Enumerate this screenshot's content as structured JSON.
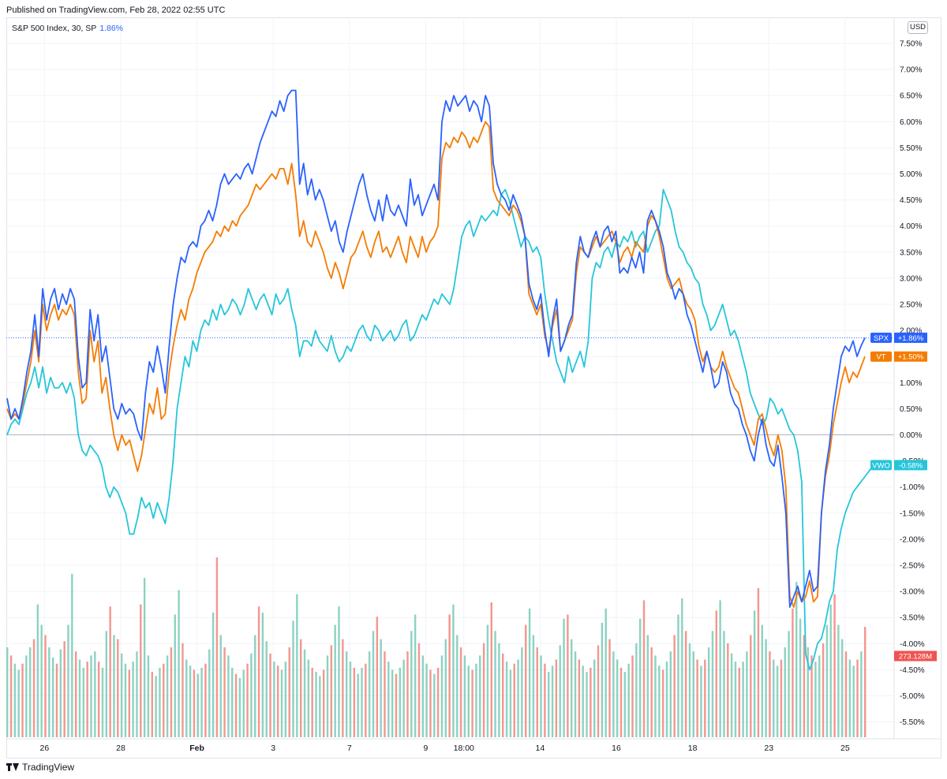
{
  "header": {
    "published": "Published on TradingView.com, Feb 28, 2022 02:55 UTC"
  },
  "legend": {
    "symbol": "S&P 500 Index, 30, SP",
    "change": "1.86%"
  },
  "currency": "USD",
  "footer": {
    "brand": "TradingView"
  },
  "colors": {
    "spx": "#2962ff",
    "vt": "#f57c00",
    "vwo": "#26c6da",
    "vol_up": "#7fcdbb",
    "vol_down": "#f28b82"
  },
  "chart_data": {
    "type": "line",
    "y_axis_unit": "%",
    "ylim": [
      -5.75,
      7.75
    ],
    "y_ticks": [
      "7.50%",
      "7.00%",
      "6.50%",
      "6.00%",
      "5.50%",
      "5.00%",
      "4.50%",
      "4.00%",
      "3.50%",
      "3.00%",
      "2.50%",
      "2.00%",
      "1.50%",
      "1.00%",
      "0.50%",
      "0.00%",
      "-0.50%",
      "-1.00%",
      "-1.50%",
      "-2.00%",
      "-2.50%",
      "-3.00%",
      "-3.50%",
      "-4.00%",
      "-4.50%",
      "-5.00%",
      "-5.50%"
    ],
    "x_ticks": [
      "26",
      "28",
      "Feb",
      "3",
      "7",
      "9",
      "18:00",
      "14",
      "16",
      "18",
      "23",
      "25"
    ],
    "x_tick_bold": [
      "Feb"
    ],
    "bars_per_session": 14,
    "sessions": 23,
    "series": [
      {
        "name": "SPX",
        "badge": "+1.86%",
        "last": 1.86,
        "values": [
          0.7,
          0.3,
          0.5,
          0.3,
          0.7,
          1.2,
          1.6,
          2.3,
          1.5,
          2.8,
          2.2,
          2.6,
          2.8,
          2.4,
          2.7,
          2.5,
          2.8,
          2.6,
          1.5,
          0.9,
          1.0,
          2.4,
          1.8,
          2.3,
          1.4,
          1.7,
          1.1,
          0.5,
          0.3,
          0.6,
          0.4,
          0.5,
          0.4,
          0.1,
          -0.1,
          0.8,
          1.4,
          1.2,
          1.7,
          1.3,
          0.8,
          1.7,
          2.5,
          3.0,
          3.4,
          3.3,
          3.6,
          3.7,
          3.6,
          4.0,
          4.1,
          4.3,
          4.1,
          4.4,
          4.8,
          5.0,
          4.8,
          4.9,
          5.0,
          4.9,
          5.1,
          5.2,
          5.0,
          5.3,
          5.6,
          5.8,
          6.0,
          6.2,
          6.1,
          6.4,
          6.2,
          6.5,
          6.6,
          6.6,
          4.8,
          5.2,
          4.6,
          4.9,
          4.5,
          4.7,
          4.5,
          4.2,
          3.9,
          4.1,
          3.7,
          3.5,
          3.9,
          4.2,
          4.5,
          4.8,
          5.0,
          4.6,
          4.3,
          4.1,
          4.5,
          4.1,
          4.6,
          4.3,
          4.2,
          4.4,
          4.2,
          4.0,
          4.9,
          4.4,
          4.6,
          4.2,
          4.4,
          4.6,
          4.8,
          4.5,
          6.0,
          6.4,
          6.2,
          6.5,
          6.3,
          6.4,
          6.5,
          6.2,
          6.4,
          6.3,
          6.0,
          6.5,
          6.3,
          5.2,
          4.8,
          4.6,
          4.5,
          4.3,
          4.6,
          4.4,
          4.2,
          3.8,
          2.9,
          2.6,
          2.4,
          2.7,
          2.0,
          1.5,
          2.2,
          2.6,
          1.6,
          1.8,
          2.1,
          2.3,
          3.3,
          3.8,
          3.5,
          3.4,
          3.7,
          3.9,
          3.6,
          3.9,
          4.0,
          3.7,
          3.9,
          3.1,
          3.2,
          3.1,
          3.4,
          3.2,
          3.5,
          3.1,
          4.1,
          4.3,
          4.1,
          3.9,
          3.6,
          3.1,
          2.9,
          2.6,
          2.8,
          2.7,
          2.3,
          2.1,
          1.8,
          1.5,
          1.2,
          1.6,
          1.3,
          0.9,
          1.0,
          1.4,
          1.2,
          0.8,
          0.6,
          0.5,
          0.2,
          0.0,
          -0.3,
          -0.5,
          0.0,
          0.3,
          -0.2,
          -0.5,
          -0.6,
          -0.2,
          -0.8,
          -1.5,
          -3.3,
          -3.1,
          -2.9,
          -3.2,
          -2.9,
          -2.6,
          -3.0,
          -2.9,
          -1.5,
          -0.7,
          -0.2,
          0.5,
          1.0,
          1.5,
          1.7,
          1.6,
          1.8,
          1.5,
          1.7,
          1.86
        ]
      },
      {
        "name": "VT",
        "badge": "+1.50%",
        "last": 1.5,
        "values": [
          0.5,
          0.3,
          0.4,
          0.3,
          0.6,
          1.0,
          1.4,
          2.0,
          1.4,
          2.5,
          2.0,
          2.3,
          2.5,
          2.2,
          2.4,
          2.3,
          2.5,
          2.3,
          1.2,
          0.6,
          0.7,
          2.0,
          1.4,
          1.8,
          0.8,
          1.1,
          0.5,
          0.0,
          -0.3,
          0.0,
          -0.2,
          -0.1,
          -0.4,
          -0.7,
          -0.4,
          0.1,
          0.6,
          0.4,
          0.9,
          0.3,
          0.4,
          1.2,
          1.7,
          2.1,
          2.4,
          2.2,
          2.6,
          2.8,
          3.1,
          3.3,
          3.5,
          3.6,
          3.7,
          3.9,
          3.8,
          4.0,
          3.9,
          4.1,
          4.0,
          4.2,
          4.3,
          4.4,
          4.6,
          4.8,
          4.7,
          4.8,
          4.9,
          5.0,
          4.9,
          5.1,
          5.1,
          4.8,
          5.2,
          4.6,
          3.8,
          4.1,
          3.7,
          3.6,
          3.9,
          3.7,
          3.5,
          3.2,
          3.0,
          3.3,
          3.1,
          2.8,
          3.1,
          3.4,
          3.5,
          3.7,
          3.9,
          3.6,
          3.4,
          3.7,
          3.9,
          3.5,
          3.6,
          3.4,
          3.6,
          3.8,
          3.5,
          3.3,
          3.8,
          3.6,
          3.4,
          3.8,
          3.5,
          3.7,
          3.8,
          4.0,
          5.3,
          5.6,
          5.5,
          5.7,
          5.6,
          5.8,
          5.7,
          5.5,
          5.7,
          5.6,
          5.8,
          6.0,
          5.9,
          4.7,
          4.5,
          4.4,
          4.3,
          4.2,
          4.4,
          4.3,
          4.1,
          3.8,
          2.7,
          2.5,
          2.3,
          2.5,
          1.9,
          1.6,
          2.1,
          2.4,
          1.6,
          1.8,
          2.0,
          2.2,
          3.1,
          3.6,
          3.5,
          3.4,
          3.6,
          3.8,
          3.6,
          3.7,
          3.8,
          3.9,
          3.7,
          3.3,
          3.5,
          3.6,
          3.4,
          3.7,
          3.6,
          3.5,
          4.0,
          4.2,
          4.1,
          3.8,
          3.4,
          3.0,
          2.8,
          2.9,
          3.0,
          2.7,
          2.5,
          2.4,
          2.2,
          1.7,
          1.4,
          1.6,
          1.3,
          1.2,
          1.3,
          1.6,
          1.3,
          1.1,
          0.9,
          0.8,
          0.5,
          0.2,
          0.0,
          -0.2,
          0.3,
          0.4,
          0.1,
          -0.2,
          -0.4,
          0.0,
          -0.3,
          -1.0,
          -3.1,
          -3.3,
          -3.0,
          -3.2,
          -3.1,
          -2.8,
          -3.2,
          -3.1,
          -1.5,
          -0.8,
          -0.4,
          0.2,
          0.6,
          1.0,
          1.3,
          1.0,
          1.2,
          1.1,
          1.3,
          1.5
        ]
      },
      {
        "name": "VWO",
        "badge": "-0.58%",
        "last": -0.58,
        "values": [
          0.0,
          0.2,
          0.3,
          0.2,
          0.5,
          0.8,
          1.0,
          1.3,
          0.9,
          1.3,
          0.8,
          1.1,
          0.9,
          0.9,
          1.0,
          0.8,
          1.0,
          0.7,
          0.0,
          -0.3,
          -0.4,
          -0.2,
          -0.3,
          -0.4,
          -0.6,
          -1.0,
          -1.2,
          -1.0,
          -1.1,
          -1.3,
          -1.5,
          -1.9,
          -1.9,
          -1.6,
          -1.2,
          -1.4,
          -1.3,
          -1.6,
          -1.3,
          -1.5,
          -1.7,
          -1.2,
          -0.5,
          0.5,
          1.0,
          1.5,
          1.3,
          1.8,
          1.6,
          2.0,
          2.2,
          2.1,
          2.4,
          2.2,
          2.5,
          2.3,
          2.4,
          2.6,
          2.5,
          2.3,
          2.5,
          2.8,
          2.6,
          2.4,
          2.6,
          2.7,
          2.5,
          2.3,
          2.7,
          2.5,
          2.6,
          2.8,
          2.4,
          2.1,
          1.5,
          1.8,
          1.8,
          1.7,
          2.0,
          1.8,
          1.7,
          1.6,
          1.9,
          1.6,
          1.4,
          1.5,
          1.7,
          1.6,
          1.8,
          2.0,
          2.1,
          1.9,
          1.8,
          2.1,
          2.0,
          1.8,
          1.9,
          2.0,
          1.8,
          1.9,
          2.1,
          2.2,
          1.8,
          1.9,
          2.1,
          2.3,
          2.2,
          2.4,
          2.6,
          2.5,
          2.7,
          2.6,
          2.5,
          2.8,
          3.3,
          3.8,
          4.0,
          4.1,
          3.8,
          4.0,
          4.2,
          4.1,
          4.2,
          4.3,
          4.2,
          4.6,
          4.7,
          4.5,
          4.2,
          3.9,
          3.6,
          3.8,
          3.7,
          3.5,
          3.6,
          3.4,
          2.7,
          2.2,
          1.8,
          1.4,
          1.2,
          1.0,
          1.5,
          1.2,
          1.4,
          1.6,
          1.3,
          1.8,
          3.0,
          3.3,
          3.2,
          3.5,
          3.6,
          3.4,
          3.7,
          3.6,
          3.8,
          3.7,
          3.9,
          3.6,
          3.8,
          3.9,
          3.5,
          3.7,
          3.9,
          4.0,
          4.7,
          4.5,
          4.3,
          3.9,
          3.6,
          3.5,
          3.3,
          3.2,
          3.0,
          2.9,
          2.5,
          2.3,
          2.0,
          2.1,
          2.3,
          2.5,
          2.2,
          1.9,
          2.0,
          1.8,
          1.5,
          1.2,
          0.8,
          0.6,
          0.4,
          0.2,
          0.3,
          0.7,
          0.6,
          0.4,
          0.5,
          0.3,
          0.1,
          0.0,
          -0.3,
          -0.9,
          -4.2,
          -4.5,
          -4.3,
          -4.0,
          -3.9,
          -3.6,
          -3.2,
          -3.0,
          -2.2,
          -1.8,
          -1.5,
          -1.3,
          -1.1,
          -1.0,
          -0.9,
          -0.8,
          -0.7,
          -0.6,
          -0.6,
          -0.58
        ]
      }
    ],
    "volume": {
      "label": "273.128M",
      "values": [
        0.44,
        0.4,
        0.36,
        0.33,
        0.36,
        0.4,
        0.44,
        0.48,
        0.65,
        0.55,
        0.5,
        0.44,
        0.39,
        0.36,
        0.43,
        0.47,
        0.55,
        0.8,
        0.42,
        0.38,
        0.34,
        0.37,
        0.4,
        0.42,
        0.37,
        0.34,
        0.52,
        0.64,
        0.5,
        0.48,
        0.41,
        0.36,
        0.33,
        0.37,
        0.42,
        0.65,
        0.78,
        0.4,
        0.32,
        0.3,
        0.34,
        0.36,
        0.4,
        0.44,
        0.6,
        0.72,
        0.46,
        0.38,
        0.35,
        0.33,
        0.31,
        0.34,
        0.36,
        0.43,
        0.61,
        0.88,
        0.5,
        0.44,
        0.4,
        0.34,
        0.31,
        0.29,
        0.33,
        0.36,
        0.41,
        0.5,
        0.64,
        0.61,
        0.47,
        0.41,
        0.37,
        0.35,
        0.33,
        0.37,
        0.44,
        0.57,
        0.7,
        0.48,
        0.43,
        0.38,
        0.34,
        0.32,
        0.3,
        0.33,
        0.4,
        0.45,
        0.55,
        0.64,
        0.48,
        0.42,
        0.37,
        0.34,
        0.31,
        0.34,
        0.36,
        0.42,
        0.52,
        0.59,
        0.48,
        0.42,
        0.37,
        0.33,
        0.31,
        0.34,
        0.38,
        0.42,
        0.52,
        0.6,
        0.46,
        0.4,
        0.36,
        0.33,
        0.31,
        0.34,
        0.4,
        0.48,
        0.6,
        0.65,
        0.5,
        0.44,
        0.4,
        0.35,
        0.33,
        0.36,
        0.4,
        0.46,
        0.55,
        0.66,
        0.52,
        0.46,
        0.41,
        0.37,
        0.33,
        0.36,
        0.38,
        0.44,
        0.55,
        0.63,
        0.5,
        0.44,
        0.4,
        0.36,
        0.32,
        0.35,
        0.38,
        0.45,
        0.58,
        0.6,
        0.48,
        0.42,
        0.38,
        0.35,
        0.32,
        0.34,
        0.38,
        0.45,
        0.56,
        0.63,
        0.48,
        0.42,
        0.38,
        0.34,
        0.32,
        0.36,
        0.4,
        0.46,
        0.58,
        0.67,
        0.5,
        0.44,
        0.4,
        0.35,
        0.33,
        0.37,
        0.42,
        0.5,
        0.6,
        0.68,
        0.52,
        0.46,
        0.42,
        0.38,
        0.35,
        0.38,
        0.44,
        0.52,
        0.62,
        0.67,
        0.52,
        0.46,
        0.41,
        0.37,
        0.34,
        0.37,
        0.42,
        0.5,
        0.62,
        0.73,
        0.55,
        0.48,
        0.42,
        0.38,
        0.35,
        0.38,
        0.44,
        0.52,
        0.63,
        0.76,
        0.58,
        0.5,
        0.44,
        0.4,
        0.37,
        0.4,
        0.46,
        0.55,
        0.65,
        0.7,
        0.55,
        0.48,
        0.42,
        0.38,
        0.35,
        0.38,
        0.42,
        0.54
      ]
    },
    "grid": true,
    "zero_line": true
  }
}
